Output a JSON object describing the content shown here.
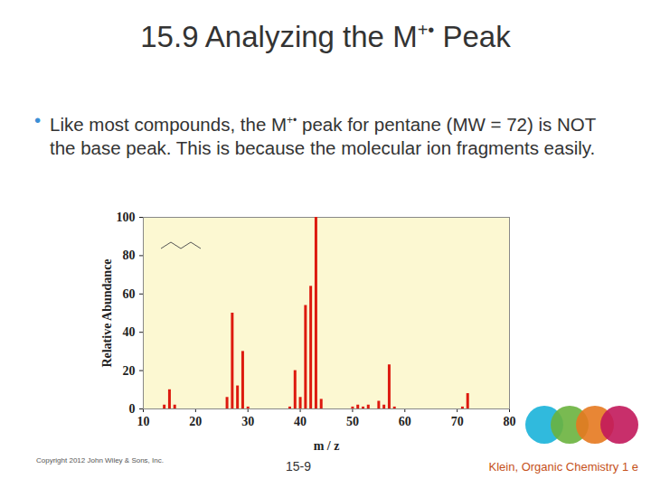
{
  "slide": {
    "title": {
      "main": "15.9 Analyzing the M",
      "sup": "+•",
      "end": " Peak"
    },
    "bullet": {
      "main": "Like most compounds, the M",
      "sup": "+•",
      "end": " peak for pentane (MW = 72) is NOT the base peak. This is because the molecular ion fragments easily."
    },
    "footer": {
      "copyright": "Copyright 2012 John Wiley & Sons, Inc.",
      "page": "15-9",
      "credit": "Klein, Organic Chemistry 1 e"
    }
  },
  "chart_data": {
    "type": "bar",
    "x_label": "m / z",
    "y_label": "Relative Abundance",
    "x": [
      14,
      15,
      16,
      26,
      27,
      28,
      29,
      30,
      38,
      39,
      40,
      41,
      42,
      43,
      44,
      50,
      51,
      52,
      53,
      55,
      56,
      57,
      58,
      71,
      72
    ],
    "values": [
      2,
      10,
      2,
      6,
      50,
      12,
      30,
      1,
      1,
      20,
      6,
      54,
      64,
      100,
      5,
      1,
      2,
      1,
      2,
      4,
      2,
      23,
      1,
      1,
      8
    ],
    "color": "#dd1a0f",
    "xlim": [
      10,
      80
    ],
    "xticks": [
      10,
      20,
      30,
      40,
      50,
      60,
      70,
      80
    ],
    "ylim": [
      0,
      100
    ],
    "yticks": [
      0,
      20,
      40,
      60,
      80,
      100
    ],
    "grid": false
  }
}
